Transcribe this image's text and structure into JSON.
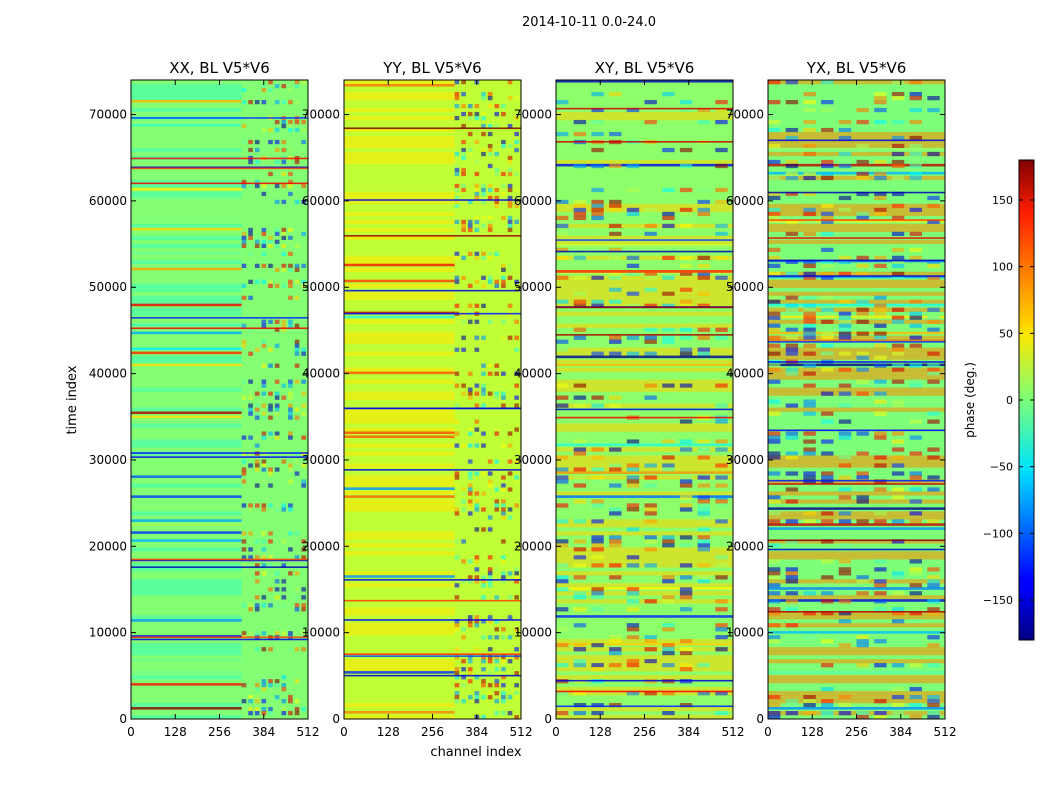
{
  "figure": {
    "suptitle": "2014-10-11 0.0-24.0"
  },
  "chart_data": {
    "type": "heatmap",
    "xlabel": "channel index",
    "ylabel": "time index",
    "xlim": [
      0,
      512
    ],
    "ylim": [
      0,
      74000
    ],
    "x_ticks": [
      "0",
      "128",
      "256",
      "384",
      "512"
    ],
    "y_ticks": [
      "0",
      "10000",
      "20000",
      "30000",
      "40000",
      "50000",
      "60000",
      "70000"
    ],
    "panels": [
      {
        "title": "XX, BL V5*V6",
        "base": "#84ff73",
        "alt": "#3cffba",
        "split_channel": 320
      },
      {
        "title": "YY, BL V5*V6",
        "base": "#c0ff36",
        "alt": "#ffe600",
        "split_channel": 320
      },
      {
        "title": "XY, BL V5*V6",
        "base": "#8cff6a",
        "alt": "#ffd200",
        "split_channel": 512
      },
      {
        "title": "YX, BL V5*V6",
        "base": "#7dff7a",
        "alt": "#ff8a00",
        "split_channel": 512
      }
    ],
    "colorbar": {
      "label": "phase (deg.)",
      "range": [
        -180,
        180
      ],
      "ticks": [
        "150",
        "100",
        "50",
        "0",
        "−50",
        "−100",
        "−150"
      ],
      "colormap": "jet"
    }
  }
}
